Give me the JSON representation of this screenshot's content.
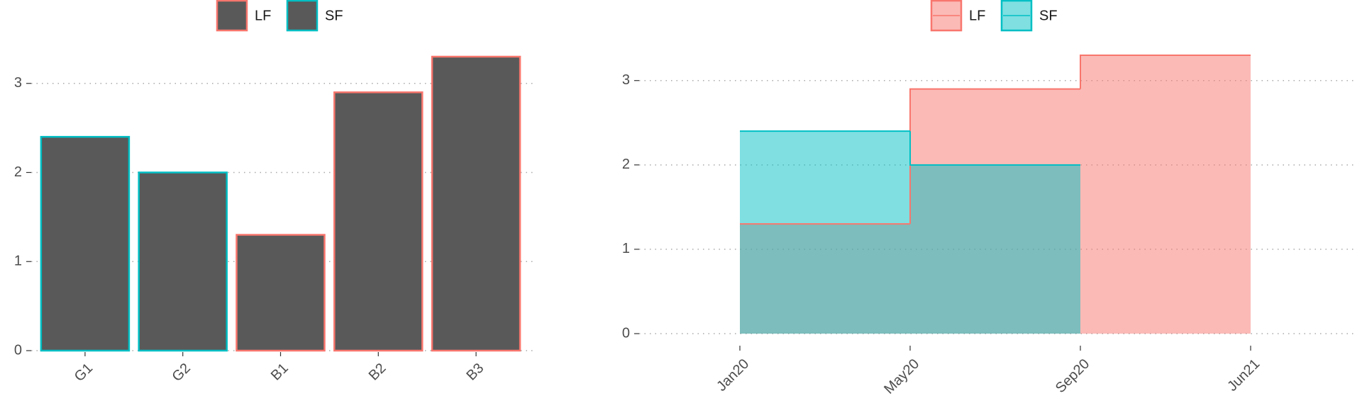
{
  "chart_data": [
    {
      "type": "bar",
      "categories": [
        "G1",
        "G2",
        "B1",
        "B2",
        "B3"
      ],
      "series": [
        {
          "name": "LF",
          "color": "#f8766d",
          "values": [
            null,
            null,
            1.3,
            2.9,
            3.3
          ]
        },
        {
          "name": "SF",
          "color": "#00bfc4",
          "values": [
            2.4,
            2.0,
            null,
            null,
            null
          ]
        }
      ],
      "fill": "#595959",
      "ylim": [
        0,
        3.3
      ],
      "yticks": [
        0,
        1,
        2,
        3
      ],
      "grid": true,
      "legend": "top"
    },
    {
      "type": "step",
      "x": [
        "Jan20",
        "May20",
        "Sep20",
        "Jun21"
      ],
      "series": [
        {
          "name": "LF",
          "color": "#f8766d",
          "values": [
            1.3,
            2.9,
            3.3,
            null
          ]
        },
        {
          "name": "SF",
          "color": "#00bfc4",
          "values": [
            2.4,
            2.0,
            null,
            null
          ]
        }
      ],
      "alpha": 0.5,
      "ylim": [
        0,
        3.3
      ],
      "yticks": [
        0,
        1,
        2,
        3
      ],
      "grid": true,
      "legend": "top"
    }
  ]
}
